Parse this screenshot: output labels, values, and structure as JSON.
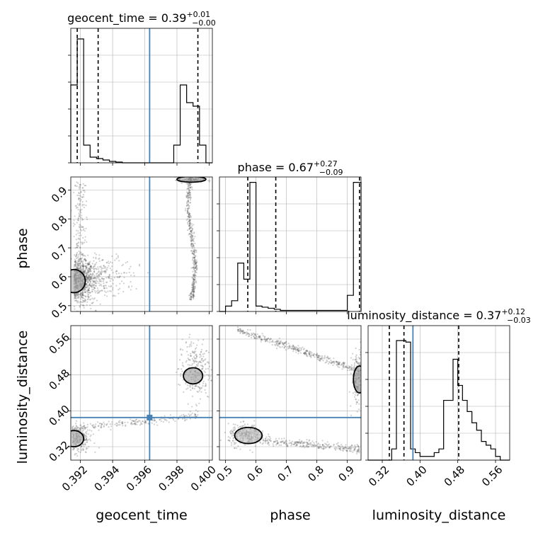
{
  "chart_data": {
    "type": "corner",
    "parameters": [
      "geocent_time",
      "phase",
      "luminosity_distance"
    ],
    "truth": {
      "geocent_time": 0.3963,
      "phase": null,
      "luminosity_distance": 0.385
    },
    "colors": {
      "truth": "#4682b4",
      "hist": "#000000",
      "grid": "#b0b0b0",
      "points": "#555555"
    },
    "panels": {
      "geocent_time_hist": {
        "title_main": "geocent_time = 0.39",
        "title_sup": "+0.01",
        "title_sub": "−0.00",
        "xlim": [
          0.3914,
          0.4002
        ],
        "bin_edges": [
          0.3914,
          0.3918,
          0.3922,
          0.3926,
          0.393,
          0.3934,
          0.3938,
          0.3942,
          0.3946,
          0.395,
          0.3954,
          0.3958,
          0.3962,
          0.3966,
          0.397,
          0.3974,
          0.3978,
          0.3982,
          0.3986,
          0.399,
          0.3994,
          0.3998,
          0.4002
        ],
        "counts": [
          110,
          175,
          25,
          8,
          6,
          4,
          2,
          1,
          0,
          0,
          0,
          0,
          0,
          0,
          0,
          0,
          25,
          110,
          85,
          80,
          25,
          0
        ],
        "ymax": 190,
        "quantiles": [
          0.3918,
          0.3931,
          0.3993
        ]
      },
      "phase_hist": {
        "title_main": "phase = 0.67",
        "title_sup": "+0.27",
        "title_sub": "−0.09",
        "xlim": [
          0.48,
          0.945
        ],
        "bin_edges": [
          0.48,
          0.5,
          0.52,
          0.54,
          0.56,
          0.58,
          0.6,
          0.62,
          0.64,
          0.66,
          0.68,
          0.7,
          0.72,
          0.74,
          0.76,
          0.78,
          0.8,
          0.82,
          0.84,
          0.86,
          0.88,
          0.9,
          0.92,
          0.945
        ],
        "counts": [
          0,
          5,
          10,
          45,
          30,
          120,
          5,
          4,
          3,
          2,
          1,
          1,
          1,
          1,
          1,
          1,
          1,
          1,
          1,
          1,
          1,
          15,
          120
        ],
        "ymax": 125,
        "quantiles": [
          0.573,
          0.665,
          0.94
        ]
      },
      "luminosity_distance_hist": {
        "title_main": "luminosity_distance = 0.37",
        "title_sup": "+0.12",
        "title_sub": "−0.03",
        "xlim": [
          0.29,
          0.59
        ],
        "bin_edges": [
          0.29,
          0.3,
          0.31,
          0.32,
          0.33,
          0.34,
          0.35,
          0.36,
          0.37,
          0.38,
          0.39,
          0.4,
          0.41,
          0.42,
          0.43,
          0.44,
          0.45,
          0.46,
          0.47,
          0.48,
          0.49,
          0.5,
          0.51,
          0.52,
          0.53,
          0.54,
          0.55,
          0.56,
          0.57,
          0.58,
          0.59
        ],
        "counts": [
          0,
          0,
          0,
          0,
          0,
          15,
          160,
          160,
          158,
          15,
          10,
          5,
          5,
          5,
          10,
          15,
          80,
          80,
          135,
          100,
          80,
          65,
          50,
          40,
          25,
          20,
          15,
          5,
          0,
          0
        ],
        "ymax": 180,
        "quantiles": [
          0.335,
          0.366,
          0.482
        ]
      },
      "phase_vs_geocent_time": {
        "xlim": [
          0.3914,
          0.4002
        ],
        "ylim": [
          0.48,
          0.945
        ]
      },
      "luminosity_distance_vs_geocent_time": {
        "xlim": [
          0.3914,
          0.4002
        ],
        "ylim": [
          0.29,
          0.59
        ]
      },
      "luminosity_distance_vs_phase": {
        "xlim": [
          0.48,
          0.945
        ],
        "ylim": [
          0.29,
          0.59
        ]
      }
    },
    "ticks": {
      "geocent_time": {
        "values": [
          0.392,
          0.394,
          0.396,
          0.398,
          0.4
        ],
        "labels": [
          "0.392",
          "0.394",
          "0.396",
          "0.398",
          "0.400"
        ]
      },
      "phase": {
        "values": [
          0.5,
          0.6,
          0.7,
          0.8,
          0.9
        ],
        "labels": [
          "0.5",
          "0.6",
          "0.7",
          "0.8",
          "0.9"
        ]
      },
      "luminosity_distance": {
        "values": [
          0.32,
          0.4,
          0.48,
          0.56
        ],
        "labels": [
          "0.32",
          "0.40",
          "0.48",
          "0.56"
        ]
      }
    },
    "axis_labels": {
      "x": [
        "geocent_time",
        "phase",
        "luminosity_distance"
      ],
      "y": [
        "phase",
        "luminosity_distance"
      ]
    }
  }
}
